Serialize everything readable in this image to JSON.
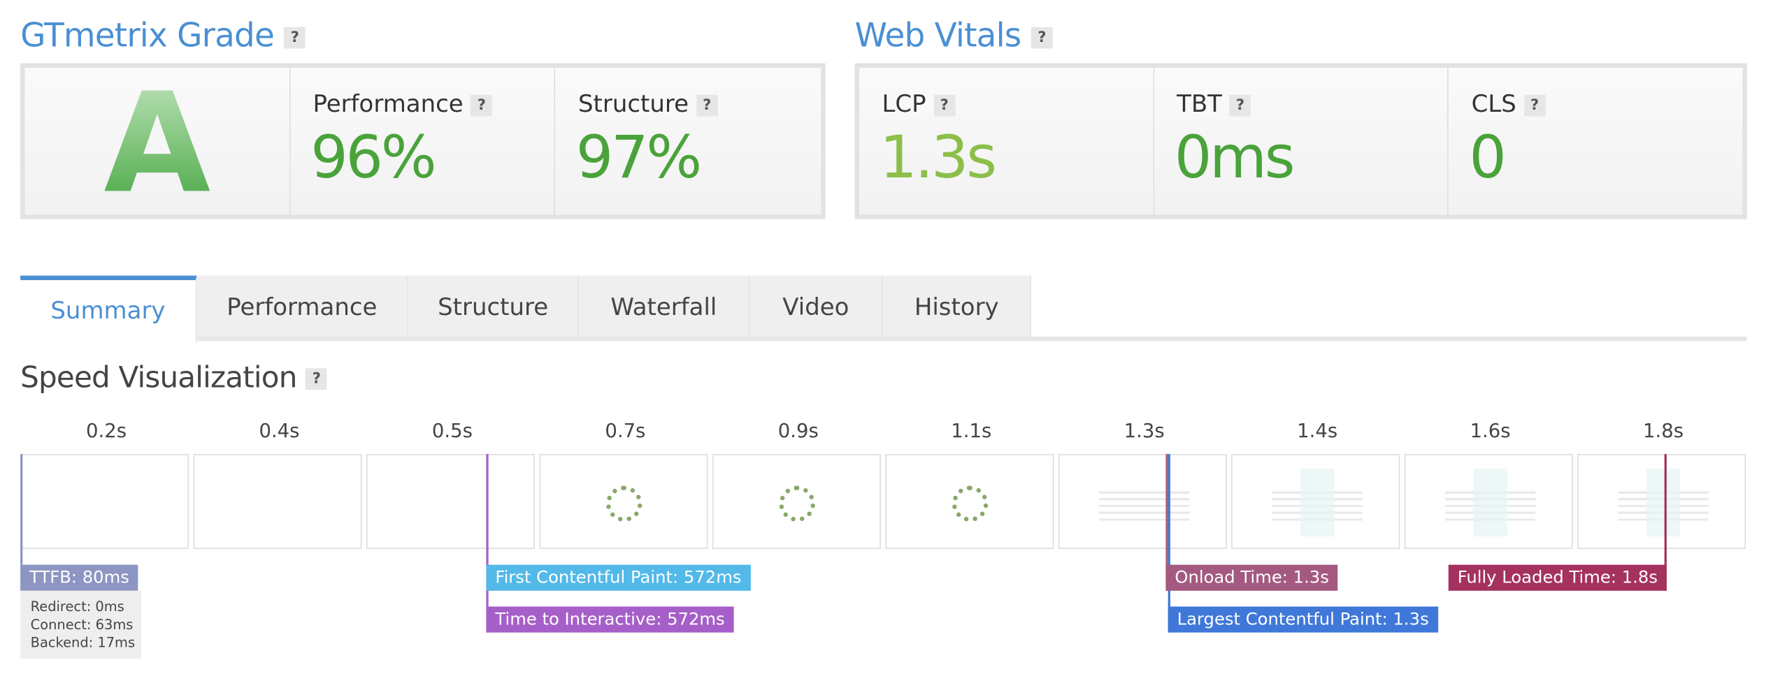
{
  "grade": {
    "title": "GTmetrix Grade",
    "help": "?",
    "grade": "A",
    "performance": {
      "label": "Performance",
      "value": "96%"
    },
    "structure": {
      "label": "Structure",
      "value": "97%"
    }
  },
  "web_vitals": {
    "title": "Web Vitals",
    "items": [
      {
        "label": "LCP",
        "value": "1.3s"
      },
      {
        "label": "TBT",
        "value": "0ms"
      },
      {
        "label": "CLS",
        "value": "0"
      }
    ]
  },
  "tabs": [
    "Summary",
    "Performance",
    "Structure",
    "Waterfall",
    "Video",
    "History"
  ],
  "speed_visualization": {
    "title": "Speed Visualization",
    "frames": [
      "0.2s",
      "0.4s",
      "0.5s",
      "0.7s",
      "0.9s",
      "1.1s",
      "1.3s",
      "1.4s",
      "1.6s",
      "1.8s"
    ],
    "markers": [
      "TTFB: 80ms",
      "First Contentful Paint: 572ms",
      "Time to Interactive: 572ms",
      "Onload Time: 1.3s",
      "Largest Contentful Paint: 1.3s",
      "Fully Loaded Time: 1.8s"
    ],
    "ttfb_details": [
      "Redirect: 0ms",
      "Connect: 63ms",
      "Backend: 17ms"
    ]
  }
}
